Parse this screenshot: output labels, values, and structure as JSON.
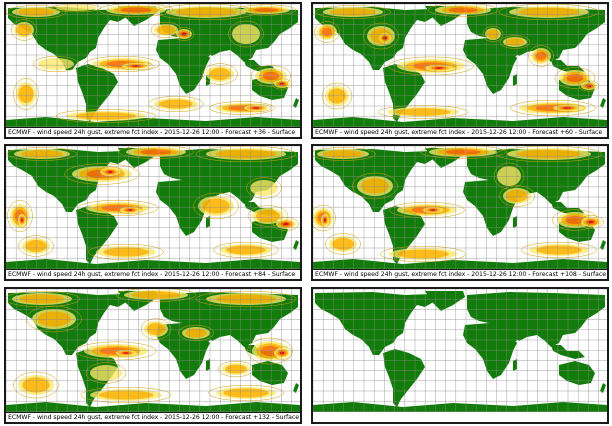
{
  "panels": [
    {
      "id": "p1",
      "caption": "ECMWF - wind speed 24h gust, extreme fct index - 2015-12-26 12:00 - Forecast +36 - Surface",
      "forecast_hour": 36
    },
    {
      "id": "p2",
      "caption": "ECMWF - wind speed 24h gust, extreme fct index - 2015-12-26 12:00 - Forecast +60 - Surface",
      "forecast_hour": 60
    },
    {
      "id": "p3",
      "caption": "ECMWF - wind speed 24h gust, extreme fct index - 2015-12-26 12:00 - Forecast +84 - Surface",
      "forecast_hour": 84
    },
    {
      "id": "p4",
      "caption": "ECMWF - wind speed 24h gust, extreme fct index - 2015-12-26 12:00 - Forecast +108 - Surface",
      "forecast_hour": 108
    },
    {
      "id": "p5",
      "caption": "ECMWF - wind speed 24h gust, extreme fct index - 2015-12-26 12:00 - Forecast +132 - Surface",
      "forecast_hour": 132
    },
    {
      "id": "p6",
      "caption": "",
      "forecast_hour": null
    }
  ],
  "colors": {
    "land": "#127c0a",
    "ocean": "#ffffff",
    "grid": "#8a8a8a",
    "index_low": "#ffe866",
    "index_mid": "#ffb400",
    "index_high": "#ff6a00",
    "index_extreme": "#d40000",
    "contour": "#d7a000"
  }
}
